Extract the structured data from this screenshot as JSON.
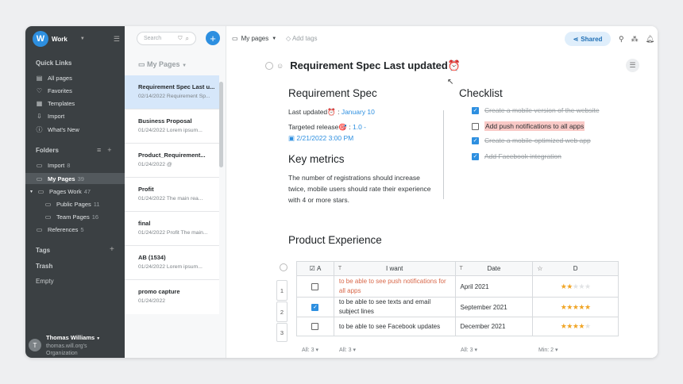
{
  "workspace": {
    "logo": "W",
    "name": "Work"
  },
  "sidebar": {
    "quick_links_title": "Quick Links",
    "quick_links": [
      {
        "label": "All pages",
        "icon": "document-icon"
      },
      {
        "label": "Favorites",
        "icon": "heart-icon"
      },
      {
        "label": "Templates",
        "icon": "templates-icon"
      },
      {
        "label": "Import",
        "icon": "import-icon"
      },
      {
        "label": "What's New",
        "icon": "info-icon"
      }
    ],
    "folders_title": "Folders",
    "folders": [
      {
        "label": "Import",
        "count": "8"
      },
      {
        "label": "My Pages",
        "count": "39"
      },
      {
        "label": "Pages Work",
        "count": "47"
      },
      {
        "label": "Public Pages",
        "count": "11"
      },
      {
        "label": "Team Pages",
        "count": "16"
      },
      {
        "label": "References",
        "count": "5"
      }
    ],
    "tags_title": "Tags",
    "trash": "Trash",
    "empty": "Empty",
    "user": {
      "initial": "T",
      "name": "Thomas Williams",
      "email": "thomas.will.org's",
      "org": "Organization"
    }
  },
  "list": {
    "search_placeholder": "Search",
    "folder_title": "My Pages",
    "items": [
      {
        "title": "Requirement Spec Last u...",
        "sub": "02/14/2022 Requirement Sp..."
      },
      {
        "title": "Business Proposal",
        "sub": "01/24/2022 Lorem ipsum..."
      },
      {
        "title": "Product_Requirement...",
        "sub": "01/24/2022 @"
      },
      {
        "title": "Profit",
        "sub": "01/24/2022 The main rea..."
      },
      {
        "title": "final",
        "sub": "01/24/2022 Profit The main..."
      },
      {
        "title": "AB (1534)",
        "sub": "01/24/2022 Lorem ipsum..."
      },
      {
        "title": "promo capture",
        "sub": "01/24/2022"
      }
    ]
  },
  "toolbar": {
    "breadcrumb": "My pages",
    "add_tags": "Add tags",
    "share": "Shared"
  },
  "page": {
    "title": "Requirement Spec Last updated⏰",
    "spec_title": "Requirement Spec",
    "last_updated_label": "Last updated⏰ : ",
    "last_updated_value": "January 10",
    "release_label": "Targeted release🎯 : ",
    "release_value": "1.0 -",
    "release_date": "2/21/2022 3:00 PM",
    "metrics_title": "Key metrics",
    "metrics_text": "The number of registrations should increase twice, mobile users should rate their experience with 4 or more stars.",
    "checklist_title": "Checklist",
    "checklist": [
      {
        "label": "Create a mobile version of the website",
        "done": true
      },
      {
        "label": "Add push notifications to all apps",
        "done": false
      },
      {
        "label": "Create a mobile-optimized web app",
        "done": true
      },
      {
        "label": "Add Facebook integration",
        "done": true
      }
    ],
    "experience_title": "Product Experience"
  },
  "table": {
    "headers": [
      "A",
      "I want",
      "Date",
      "D"
    ],
    "rows": [
      {
        "num": "1",
        "checked": false,
        "want": "to be able to see push notifications for all apps",
        "date": "April 2021",
        "stars": 2
      },
      {
        "num": "2",
        "checked": true,
        "want": "to be able to see texts and email subject lines",
        "date": "September 2021",
        "stars": 5
      },
      {
        "num": "3",
        "checked": false,
        "want": "to be able to see Facebook updates",
        "date": "December 2021",
        "stars": 4
      }
    ],
    "footer": [
      "All: 3",
      "All: 3",
      "All: 3",
      "Min: 2"
    ]
  }
}
